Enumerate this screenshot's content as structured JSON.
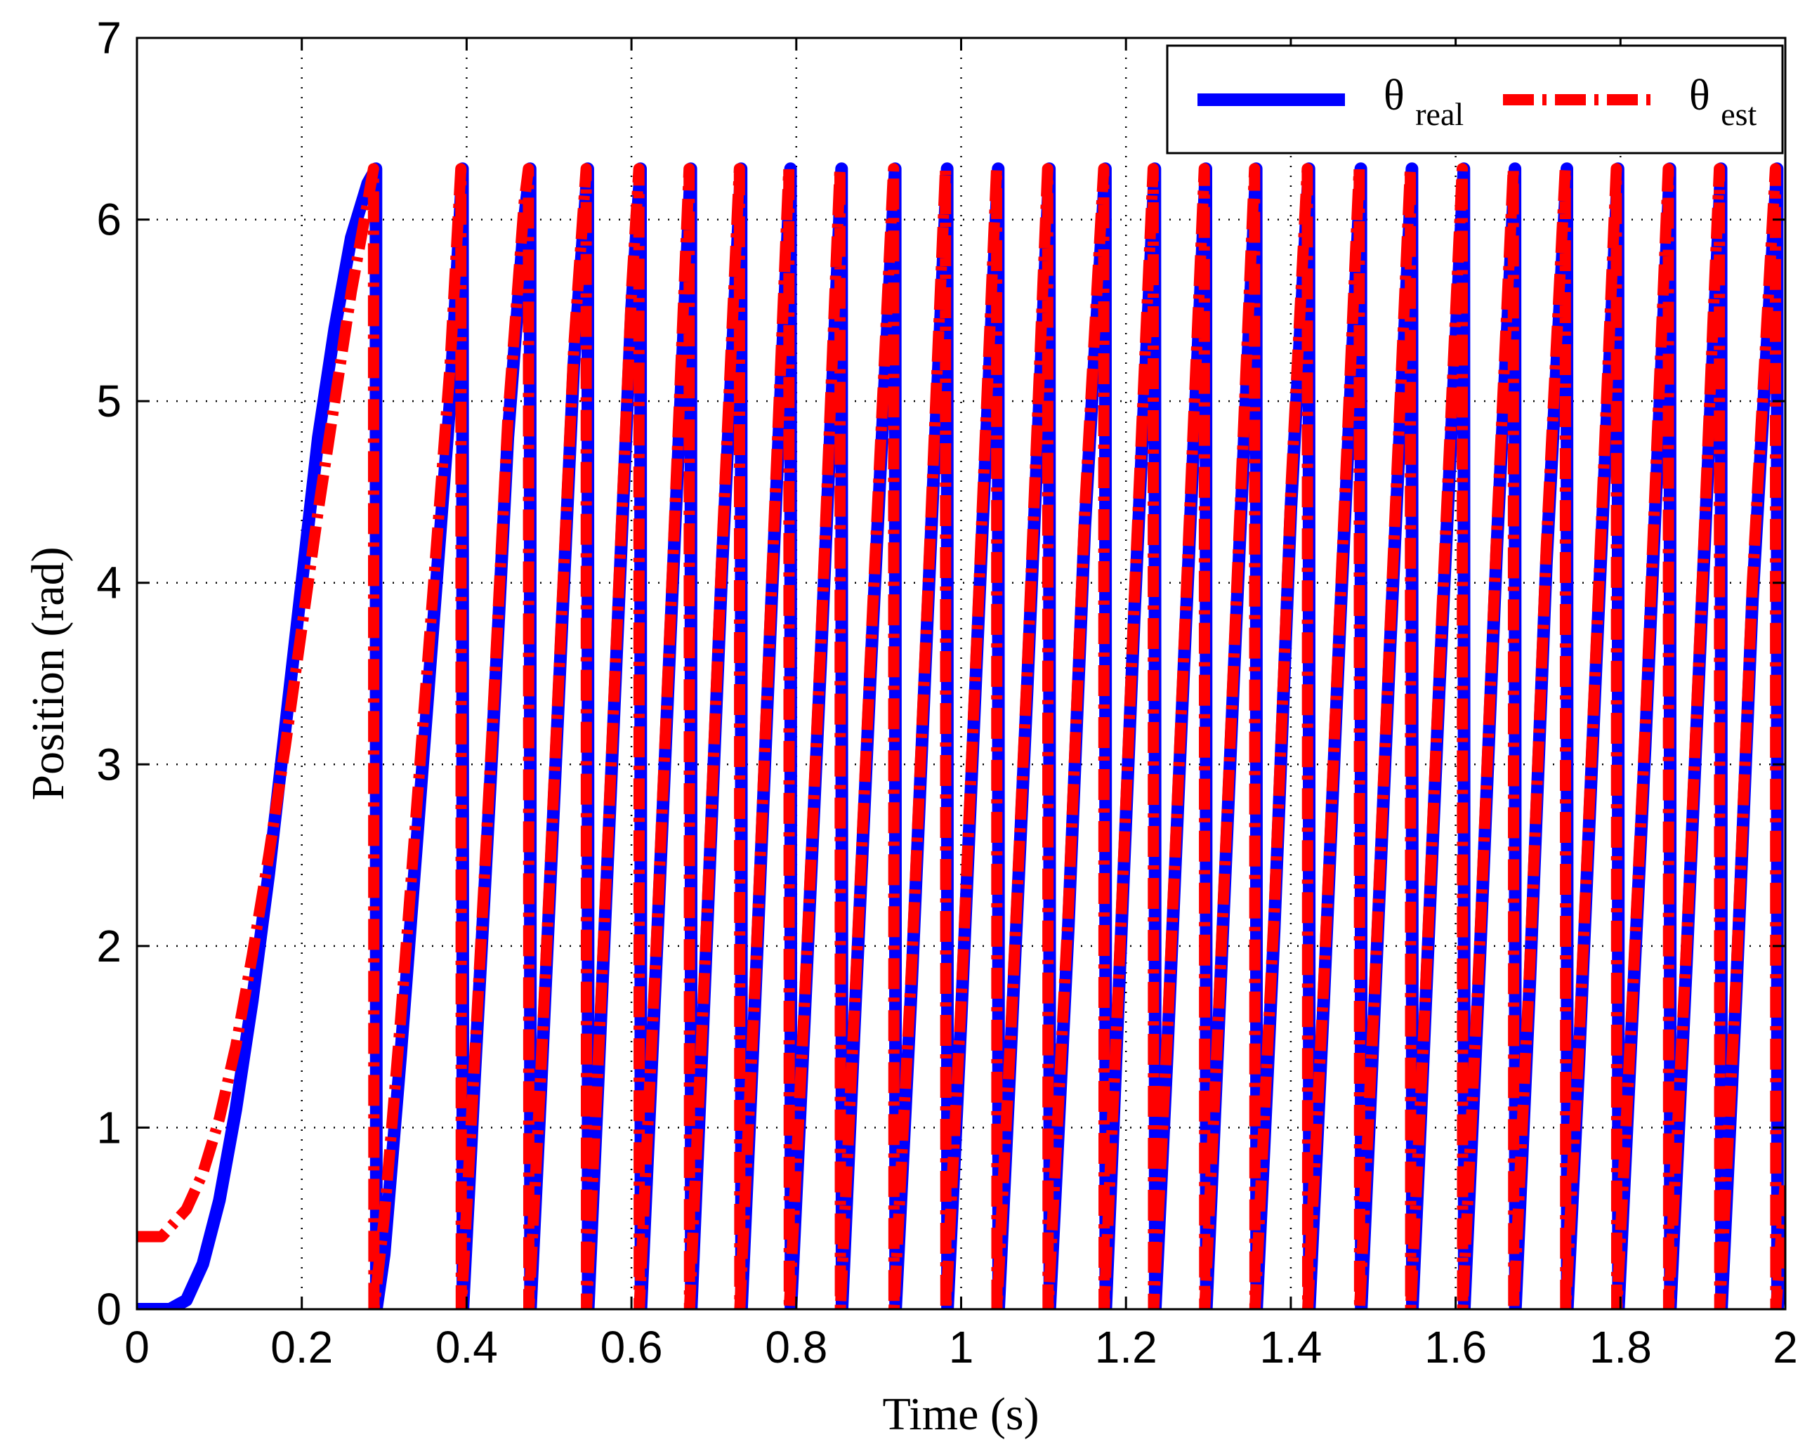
{
  "chart_data": {
    "type": "line",
    "title": "",
    "xlabel": "Time (s)",
    "ylabel": "Position (rad)",
    "xlim": [
      0,
      2
    ],
    "ylim": [
      0,
      7
    ],
    "grid": true,
    "legend_placement": "top-right",
    "x_tick_labels": [
      "0",
      "0.2",
      "0.4",
      "0.6",
      "0.8",
      "1",
      "1.2",
      "1.4",
      "1.6",
      "1.8",
      "2"
    ],
    "y_tick_labels": [
      "0",
      "1",
      "2",
      "3",
      "4",
      "5",
      "6",
      "7"
    ],
    "series": [
      {
        "name": "θ_real",
        "legend_main": "θ",
        "legend_sub": "real",
        "color": "#0000ff",
        "style": "solid",
        "x": [
          0.0,
          0.04,
          0.06,
          0.08,
          0.1,
          0.12,
          0.14,
          0.16,
          0.18,
          0.2,
          0.22,
          0.24,
          0.26,
          0.28,
          0.29,
          0.2905,
          0.3,
          0.32,
          0.34,
          0.36,
          0.38,
          0.395,
          0.3955,
          0.41,
          0.43,
          0.45,
          0.47,
          0.477,
          0.4775,
          0.49,
          0.51,
          0.53,
          0.547,
          0.5475,
          0.56,
          0.58,
          0.6,
          0.611,
          0.6115,
          0.63,
          0.65,
          0.672,
          0.6725,
          0.69,
          0.71,
          0.733,
          0.7335,
          0.75,
          0.77,
          0.793,
          0.7935,
          0.81,
          0.83,
          0.855,
          0.8555,
          0.87,
          0.89,
          0.92,
          0.9205,
          0.94,
          0.96,
          0.983,
          0.9835,
          1.0,
          1.02,
          1.045,
          1.0455,
          1.06,
          1.08,
          1.107,
          1.1075,
          1.13,
          1.15,
          1.175,
          1.1755,
          1.19,
          1.21,
          1.235,
          1.2355,
          1.25,
          1.27,
          1.297,
          1.2975,
          1.31,
          1.33,
          1.358,
          1.3585,
          1.38,
          1.4,
          1.422,
          1.4225,
          1.44,
          1.46,
          1.485,
          1.4855,
          1.5,
          1.52,
          1.547,
          1.5475,
          1.56,
          1.58,
          1.61,
          1.6105,
          1.63,
          1.65,
          1.672,
          1.6725,
          1.69,
          1.71,
          1.735,
          1.7355,
          1.75,
          1.77,
          1.797,
          1.7975,
          1.81,
          1.83,
          1.86,
          1.8605,
          1.88,
          1.9,
          1.922,
          1.9225,
          1.94,
          1.96,
          1.99,
          1.9905,
          2.0
        ],
        "y": [
          0.0,
          0.0,
          0.05,
          0.25,
          0.6,
          1.1,
          1.7,
          2.4,
          3.2,
          4.0,
          4.8,
          5.4,
          5.9,
          6.2,
          6.28,
          0.0,
          0.3,
          1.4,
          2.6,
          3.8,
          5.0,
          6.28,
          0.0,
          1.3,
          3.0,
          4.8,
          6.0,
          6.28,
          0.0,
          1.2,
          3.2,
          5.2,
          6.28,
          0.0,
          1.3,
          3.4,
          5.5,
          6.28,
          0.0,
          1.9,
          4.0,
          6.28,
          0.0,
          1.9,
          4.1,
          6.28,
          0.0,
          1.7,
          3.9,
          6.28,
          0.0,
          1.6,
          3.6,
          6.28,
          0.0,
          1.5,
          3.5,
          6.28,
          0.0,
          1.8,
          3.9,
          6.28,
          0.0,
          1.6,
          3.7,
          6.28,
          0.0,
          1.4,
          3.4,
          6.28,
          0.0,
          2.1,
          4.3,
          6.28,
          0.0,
          1.6,
          3.8,
          6.28,
          0.0,
          1.4,
          3.5,
          6.28,
          0.0,
          1.3,
          3.4,
          6.28,
          0.0,
          2.1,
          4.4,
          6.28,
          0.0,
          1.7,
          3.8,
          6.28,
          0.0,
          1.5,
          3.6,
          6.28,
          0.0,
          1.3,
          3.4,
          6.28,
          0.0,
          2.0,
          4.2,
          6.28,
          0.0,
          1.8,
          4.1,
          6.28,
          0.0,
          1.4,
          3.5,
          6.28,
          0.0,
          1.2,
          3.1,
          6.28,
          0.0,
          1.9,
          4.0,
          6.28,
          0.0,
          1.7,
          3.9,
          6.28,
          0.0,
          0.6
        ]
      },
      {
        "name": "θ_est",
        "legend_main": "θ",
        "legend_sub": "est",
        "color": "#ff0000",
        "style": "dash-dot",
        "x": [
          0.0,
          0.03,
          0.06,
          0.08,
          0.1,
          0.12,
          0.14,
          0.16,
          0.18,
          0.2,
          0.22,
          0.24,
          0.26,
          0.28,
          0.287,
          0.2875,
          0.3,
          0.32,
          0.34,
          0.36,
          0.38,
          0.393,
          0.3935,
          0.41,
          0.43,
          0.45,
          0.47,
          0.475,
          0.4755,
          0.49,
          0.51,
          0.53,
          0.545,
          0.5455,
          0.56,
          0.58,
          0.6,
          0.609,
          0.6095,
          0.63,
          0.65,
          0.67,
          0.6705,
          0.69,
          0.71,
          0.731,
          0.7315,
          0.75,
          0.77,
          0.791,
          0.7915,
          0.81,
          0.83,
          0.853,
          0.8535,
          0.87,
          0.89,
          0.918,
          0.9185,
          0.94,
          0.96,
          0.981,
          0.9815,
          1.0,
          1.02,
          1.043,
          1.0435,
          1.06,
          1.08,
          1.105,
          1.1055,
          1.13,
          1.15,
          1.173,
          1.1735,
          1.19,
          1.21,
          1.233,
          1.2335,
          1.25,
          1.27,
          1.295,
          1.2955,
          1.31,
          1.33,
          1.356,
          1.3565,
          1.38,
          1.4,
          1.42,
          1.4205,
          1.44,
          1.46,
          1.483,
          1.4835,
          1.5,
          1.52,
          1.545,
          1.5455,
          1.56,
          1.58,
          1.608,
          1.6085,
          1.63,
          1.65,
          1.67,
          1.6705,
          1.69,
          1.71,
          1.733,
          1.7335,
          1.75,
          1.77,
          1.795,
          1.7955,
          1.81,
          1.83,
          1.858,
          1.8585,
          1.88,
          1.9,
          1.92,
          1.9205,
          1.94,
          1.96,
          1.988,
          1.9885,
          2.0
        ],
        "y": [
          0.4,
          0.4,
          0.55,
          0.75,
          1.05,
          1.45,
          1.95,
          2.5,
          3.1,
          3.75,
          4.4,
          5.0,
          5.6,
          6.1,
          6.28,
          0.0,
          0.5,
          1.6,
          2.8,
          4.0,
          5.2,
          6.28,
          0.0,
          1.4,
          3.1,
          4.9,
          6.1,
          6.28,
          0.0,
          1.3,
          3.3,
          5.3,
          6.28,
          0.0,
          1.4,
          3.5,
          5.6,
          6.28,
          0.0,
          2.0,
          4.1,
          6.28,
          0.0,
          2.0,
          4.2,
          6.28,
          0.0,
          1.8,
          4.0,
          6.28,
          0.0,
          1.7,
          3.7,
          6.28,
          0.0,
          1.6,
          3.6,
          6.28,
          0.0,
          1.9,
          4.0,
          6.28,
          0.0,
          1.7,
          3.8,
          6.28,
          0.0,
          1.5,
          3.5,
          6.28,
          0.0,
          2.2,
          4.4,
          6.28,
          0.0,
          1.7,
          3.9,
          6.28,
          0.0,
          1.5,
          3.6,
          6.28,
          0.0,
          1.4,
          3.5,
          6.28,
          0.0,
          2.2,
          4.5,
          6.28,
          0.0,
          1.8,
          3.9,
          6.28,
          0.0,
          1.6,
          3.7,
          6.28,
          0.0,
          1.4,
          3.5,
          6.28,
          0.0,
          2.1,
          4.3,
          6.28,
          0.0,
          1.9,
          4.2,
          6.28,
          0.0,
          1.5,
          3.6,
          6.28,
          0.0,
          1.3,
          3.2,
          6.28,
          0.0,
          2.0,
          4.1,
          6.28,
          0.0,
          1.8,
          4.0,
          6.28,
          0.0,
          0.7
        ]
      }
    ]
  }
}
